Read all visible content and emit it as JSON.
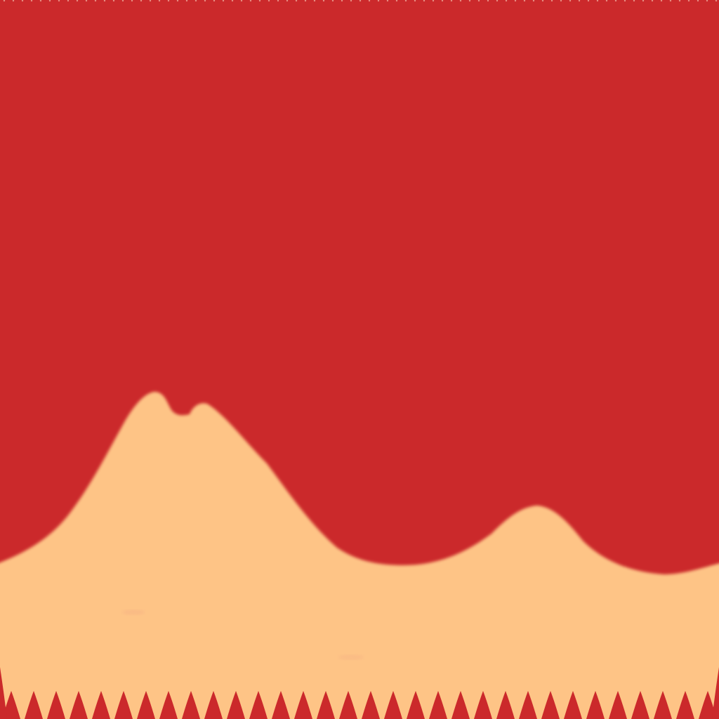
{
  "scene": {
    "description_colors": {
      "sky": "#cb292b",
      "ground": "#fec486",
      "border": "#cb292b",
      "top_dots": "#f2b8a8"
    }
  }
}
